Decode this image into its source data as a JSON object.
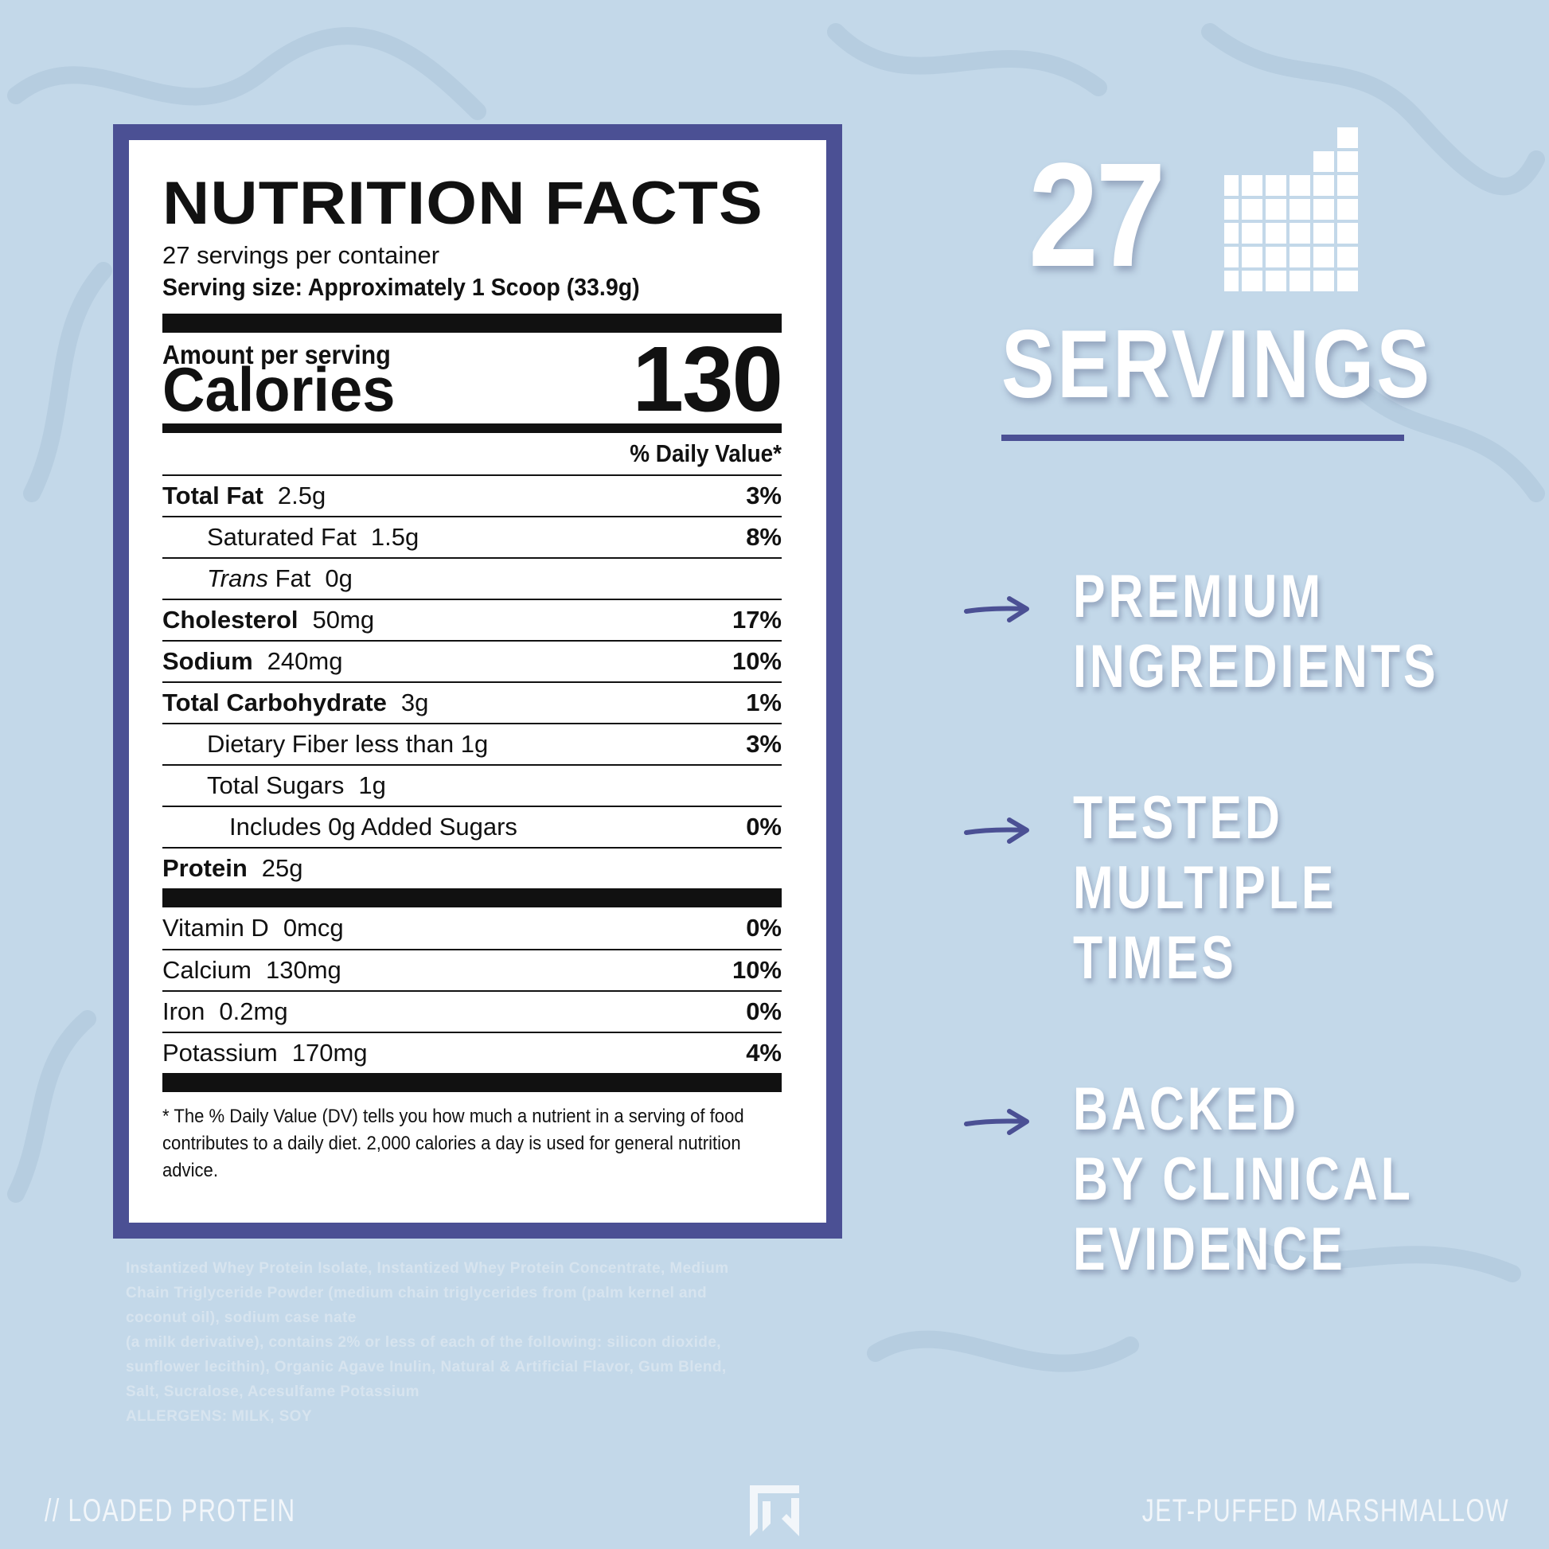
{
  "nutrition": {
    "title": "NUTRITION FACTS",
    "servings_per_container": "27 servings per container",
    "serving_size": "Serving size: Approximately 1 Scoop (33.9g)",
    "amount_per_serving": "Amount per serving",
    "calories_label": "Calories",
    "calories_value": "130",
    "daily_value_header": "% Daily Value*",
    "rows": [
      {
        "label": "Total Fat",
        "value": "2.5g",
        "dv": "3%"
      },
      {
        "label": "Saturated Fat",
        "value": "1.5g",
        "dv": "8%"
      },
      {
        "label_italic": "Trans",
        "label": "Fat",
        "value": "0g",
        "dv": ""
      },
      {
        "label": "Cholesterol",
        "value": "50mg",
        "dv": "17%"
      },
      {
        "label": "Sodium",
        "value": "240mg",
        "dv": "10%"
      },
      {
        "label": "Total Carbohydrate",
        "value": "3g",
        "dv": "1%"
      },
      {
        "label": "Dietary Fiber less than 1g",
        "value": "",
        "dv": "3%"
      },
      {
        "label": "Total Sugars",
        "value": "1g",
        "dv": ""
      },
      {
        "label": "Includes 0g Added Sugars",
        "value": "",
        "dv": "0%"
      },
      {
        "label": "Protein",
        "value": "25g",
        "dv": ""
      }
    ],
    "vitamins": [
      {
        "label": "Vitamin D",
        "value": "0mcg",
        "dv": "0%"
      },
      {
        "label": "Calcium",
        "value": "130mg",
        "dv": "10%"
      },
      {
        "label": "Iron",
        "value": "0.2mg",
        "dv": "0%"
      },
      {
        "label": "Potassium",
        "value": "170mg",
        "dv": "4%"
      }
    ],
    "footnote": "* The % Daily Value (DV) tells you how much a nutrient in a serving of food contributes to a daily diet. 2,000 calories a day is used for general nutrition advice."
  },
  "ingredients": {
    "line1": "Instantized Whey Protein Isolate, Instantized Whey Protein Concentrate, Medium",
    "line2": "Chain Triglyceride Powder (medium chain triglycerides from (palm kernel and",
    "line3": "coconut oil), sodium case nate",
    "line4": "(a milk derivative), contains 2% or less of each of the following: silicon dioxide,",
    "line5": "sunflower lecithin), Organic Agave Inulin, Natural & Artificial Flavor, Gum Blend,",
    "line6": "Salt, Sucralose, Acesulfame Potassium",
    "allergens": "ALLERGENS: MILK, SOY"
  },
  "servings_badge": {
    "number": "27",
    "word": "SERVINGS",
    "icon": "grid-chart-icon"
  },
  "claims": [
    {
      "lines": [
        "PREMIUM",
        "INGREDIENTS"
      ]
    },
    {
      "lines": [
        "TESTED",
        "MULTIPLE",
        "TIMES"
      ]
    },
    {
      "lines": [
        "BACKED",
        "BY CLINICAL",
        "EVIDENCE"
      ]
    }
  ],
  "footer": {
    "left": "// LOADED PROTEIN",
    "right": "JET-PUFFED MARSHMALLOW",
    "logo": "brand-logo-icon"
  },
  "colors": {
    "background": "#c3d8e9",
    "accent": "#4b5094",
    "text_light": "#ffffff"
  }
}
